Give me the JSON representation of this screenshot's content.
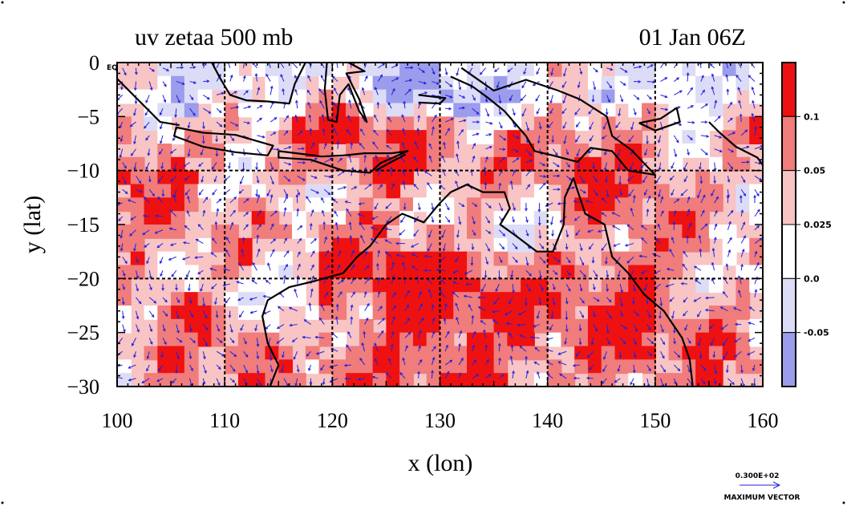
{
  "figure": {
    "title_left": "uv zetaa 500 mb",
    "title_right": "01 Jan 06Z",
    "corner_label": "EQ"
  },
  "chart_data": {
    "type": "heatmap",
    "title": "uv zetaa 500 mb",
    "subtitle": "01 Jan 06Z",
    "xlabel": "x (lon)",
    "ylabel": "y (lat)",
    "xlim": [
      100,
      160
    ],
    "ylim": [
      -30,
      0
    ],
    "x_ticks": [
      "100",
      "110",
      "120",
      "130",
      "140",
      "150",
      "160"
    ],
    "y_ticks": [
      "0",
      "−5",
      "−10",
      "−15",
      "−20",
      "−25",
      "−30"
    ],
    "x_tick_values": [
      100,
      110,
      120,
      130,
      140,
      150,
      160
    ],
    "y_tick_values": [
      0,
      -5,
      -10,
      -15,
      -20,
      -25,
      -30
    ],
    "grid_lon": [
      110,
      120,
      130,
      140,
      150
    ],
    "grid_lat": [
      -10,
      -20
    ],
    "grid": true,
    "colorbar": {
      "labels": [
        "0.1",
        "0.05",
        "0.025",
        "0.0",
        "-0.05"
      ],
      "bands": [
        {
          "color": "#ee1111",
          "label": ""
        },
        {
          "color": "#f07c7c",
          "label": "0.1"
        },
        {
          "color": "#f8c4c4",
          "label": "0.05"
        },
        {
          "color": "#ffffff",
          "label": "0.025"
        },
        {
          "color": "#dcdcf7",
          "label": "0.0"
        },
        {
          "color": "#9c9cec",
          "label": "-0.05"
        }
      ]
    },
    "vector_legend": {
      "value": "0.300E+02",
      "label": "MAXIMUM VECTOR"
    },
    "colors": {
      "strong_positive": "#ee1111",
      "positive": "#f07c7c",
      "weak_positive": "#f8c4c4",
      "neutral": "#ffffff",
      "weak_negative": "#dcdcf7",
      "negative": "#9c9cec",
      "vectors": "#2222dd",
      "coastline": "#000000"
    }
  }
}
